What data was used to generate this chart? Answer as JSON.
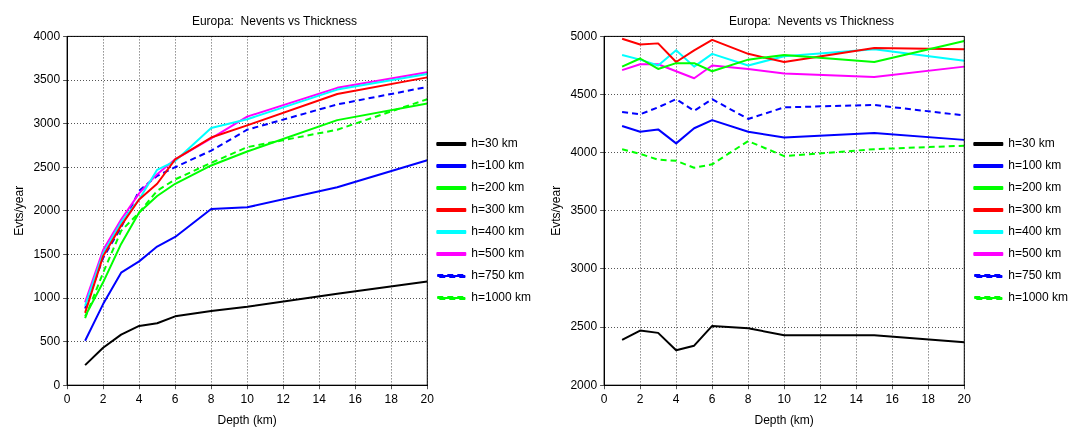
{
  "chart_data": [
    {
      "type": "line",
      "title": "Europa:  Nevents vs Thickness",
      "xlabel": "Depth (km)",
      "ylabel": "Evts/year",
      "x": [
        1,
        2,
        3,
        4,
        5,
        6,
        8,
        10,
        15,
        20
      ],
      "xlim": [
        0,
        20
      ],
      "xticks": [
        0,
        2,
        4,
        6,
        8,
        10,
        12,
        14,
        16,
        18,
        20
      ],
      "ylim": [
        0,
        4000
      ],
      "yticks": [
        0,
        500,
        1000,
        1500,
        2000,
        2500,
        3000,
        3500,
        4000
      ],
      "grid": true,
      "legend": "right",
      "series": [
        {
          "name": "h=30 km",
          "color": "#000000",
          "line_style": "solid",
          "values": [
            230,
            430,
            580,
            680,
            710,
            790,
            850,
            900,
            1050,
            1190
          ]
        },
        {
          "name": "h=100 km",
          "color": "#0000ff",
          "line_style": "solid",
          "values": [
            510,
            930,
            1290,
            1420,
            1590,
            1700,
            2020,
            2040,
            2270,
            2580
          ]
        },
        {
          "name": "h=200 km",
          "color": "#00ff00",
          "line_style": "solid",
          "values": [
            790,
            1180,
            1620,
            1980,
            2170,
            2310,
            2520,
            2680,
            3040,
            3230
          ]
        },
        {
          "name": "h=300 km",
          "color": "#ff0000",
          "line_style": "solid",
          "values": [
            830,
            1480,
            1830,
            2130,
            2310,
            2590,
            2840,
            2980,
            3340,
            3530
          ]
        },
        {
          "name": "h=400 km",
          "color": "#00ffff",
          "line_style": "solid",
          "values": [
            910,
            1510,
            1870,
            2130,
            2470,
            2570,
            2950,
            3050,
            3390,
            3570
          ]
        },
        {
          "name": "h=500 km",
          "color": "#ff00ff",
          "line_style": "solid",
          "values": [
            950,
            1550,
            1900,
            2200,
            2420,
            2590,
            2830,
            3080,
            3410,
            3590
          ]
        },
        {
          "name": "h=750 km",
          "color": "#0000ff",
          "line_style": "dashed",
          "values": [
            880,
            1460,
            1810,
            2230,
            2400,
            2500,
            2690,
            2930,
            3220,
            3420
          ]
        },
        {
          "name": "h=1000 km",
          "color": "#00ff00",
          "line_style": "dashed",
          "values": [
            770,
            1290,
            1770,
            1980,
            2230,
            2360,
            2550,
            2730,
            2930,
            3280
          ]
        }
      ]
    },
    {
      "type": "line",
      "title": "Europa:  Nevents vs Thickness",
      "xlabel": "Depth (km)",
      "ylabel": "Evts/year",
      "x": [
        1,
        2,
        3,
        4,
        5,
        6,
        8,
        10,
        15,
        20
      ],
      "xlim": [
        0,
        20
      ],
      "xticks": [
        0,
        2,
        4,
        6,
        8,
        10,
        12,
        14,
        16,
        18,
        20
      ],
      "ylim": [
        2000,
        5000
      ],
      "yticks": [
        2000,
        2500,
        3000,
        3500,
        4000,
        4500,
        5000
      ],
      "grid": true,
      "legend": "right",
      "series": [
        {
          "name": "h=30 km",
          "color": "#000000",
          "line_style": "solid",
          "values": [
            2390,
            2470,
            2450,
            2300,
            2340,
            2510,
            2490,
            2430,
            2430,
            2370
          ]
        },
        {
          "name": "h=100 km",
          "color": "#0000ff",
          "line_style": "solid",
          "values": [
            4230,
            4180,
            4200,
            4080,
            4210,
            4280,
            4180,
            4130,
            4170,
            4110
          ]
        },
        {
          "name": "h=200 km",
          "color": "#00ff00",
          "line_style": "solid",
          "values": [
            4740,
            4810,
            4720,
            4770,
            4770,
            4700,
            4800,
            4840,
            4780,
            4960
          ]
        },
        {
          "name": "h=300 km",
          "color": "#ff0000",
          "line_style": "solid",
          "values": [
            4980,
            4930,
            4940,
            4780,
            4880,
            4970,
            4850,
            4780,
            4900,
            4890
          ]
        },
        {
          "name": "h=400 km",
          "color": "#00ffff",
          "line_style": "solid",
          "values": [
            4840,
            4800,
            4750,
            4880,
            4740,
            4850,
            4750,
            4830,
            4890,
            4790
          ]
        },
        {
          "name": "h=500 km",
          "color": "#ff00ff",
          "line_style": "solid",
          "values": [
            4710,
            4760,
            4760,
            4700,
            4640,
            4750,
            4720,
            4680,
            4650,
            4740
          ]
        },
        {
          "name": "h=750 km",
          "color": "#0000ff",
          "line_style": "dashed",
          "values": [
            4350,
            4330,
            4390,
            4460,
            4360,
            4460,
            4290,
            4390,
            4410,
            4320
          ]
        },
        {
          "name": "h=1000 km",
          "color": "#00ff00",
          "line_style": "dashed",
          "values": [
            4030,
            3990,
            3940,
            3930,
            3870,
            3900,
            4100,
            3970,
            4030,
            4060
          ]
        }
      ]
    }
  ]
}
